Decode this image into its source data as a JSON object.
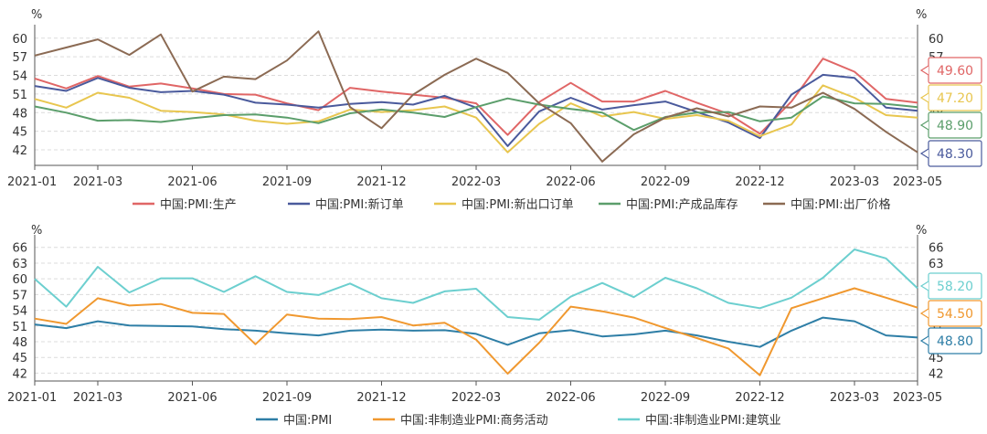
{
  "chart_data": [
    {
      "type": "line",
      "x": [
        "2021-01",
        "2021-02",
        "2021-03",
        "2021-04",
        "2021-05",
        "2021-06",
        "2021-07",
        "2021-08",
        "2021-09",
        "2021-10",
        "2021-11",
        "2021-12",
        "2022-01",
        "2022-02",
        "2022-03",
        "2022-04",
        "2022-05",
        "2022-06",
        "2022-07",
        "2022-08",
        "2022-09",
        "2022-10",
        "2022-11",
        "2022-12",
        "2023-01",
        "2023-02",
        "2023-03",
        "2023-04",
        "2023-05"
      ],
      "xticks": [
        "2021-01",
        "2021-03",
        "2021-06",
        "2021-09",
        "2021-12",
        "2022-03",
        "2022-06",
        "2022-09",
        "2022-12",
        "2023-03",
        "2023-05"
      ],
      "yticks": [
        "42",
        "45",
        "48",
        "51",
        "54",
        "57",
        "60"
      ],
      "ylim": [
        39.5,
        61
      ],
      "left_unit": "%",
      "right_unit": "%",
      "grid": true,
      "legend_position": "bottom",
      "series": [
        {
          "name": "中国:PMI:生产",
          "color": "#E06666",
          "values": [
            53.5,
            51.9,
            53.9,
            52.2,
            52.7,
            51.9,
            51.0,
            50.9,
            49.5,
            48.4,
            52.0,
            51.4,
            50.9,
            50.4,
            49.5,
            44.4,
            49.7,
            52.8,
            49.8,
            49.8,
            51.5,
            49.6,
            47.8,
            44.6,
            49.8,
            56.7,
            54.6,
            50.2,
            49.6
          ]
        },
        {
          "name": "中国:PMI:新订单",
          "color": "#4A5A9C",
          "values": [
            52.3,
            51.5,
            53.6,
            52.0,
            51.3,
            51.5,
            50.9,
            49.6,
            49.3,
            48.8,
            49.4,
            49.7,
            49.3,
            50.7,
            48.8,
            42.6,
            48.2,
            50.4,
            48.5,
            49.2,
            49.8,
            48.1,
            46.4,
            43.9,
            50.9,
            54.1,
            53.6,
            48.8,
            48.3
          ]
        },
        {
          "name": "中国:PMI:新出口订单",
          "color": "#E8C64F",
          "values": [
            50.2,
            48.8,
            51.2,
            50.4,
            48.3,
            48.1,
            47.7,
            46.7,
            46.2,
            46.6,
            48.5,
            48.1,
            48.4,
            49.0,
            47.2,
            41.6,
            46.2,
            49.5,
            47.4,
            48.1,
            47.0,
            47.6,
            46.7,
            44.2,
            46.1,
            52.4,
            50.4,
            47.6,
            47.2
          ]
        },
        {
          "name": "中国:PMI:产成品库存",
          "color": "#5B9E6B",
          "values": [
            49.0,
            48.0,
            46.7,
            46.8,
            46.5,
            47.1,
            47.6,
            47.7,
            47.2,
            46.3,
            47.9,
            48.5,
            48.0,
            47.3,
            48.9,
            50.3,
            49.3,
            48.6,
            48.0,
            45.2,
            47.3,
            48.0,
            48.1,
            46.6,
            47.2,
            50.6,
            49.5,
            49.4,
            48.9
          ]
        },
        {
          "name": "中国:PMI:出厂价格",
          "color": "#8B6A53",
          "values": [
            57.2,
            58.5,
            59.8,
            57.3,
            60.6,
            51.4,
            53.8,
            53.4,
            56.4,
            61.1,
            48.9,
            45.5,
            50.9,
            54.1,
            56.7,
            54.4,
            49.5,
            46.3,
            40.1,
            44.5,
            47.2,
            48.7,
            47.4,
            49.0,
            48.8,
            51.2,
            48.6,
            44.9,
            41.6
          ]
        }
      ],
      "end_labels": [
        {
          "text": "49.60",
          "color": "#E06666"
        },
        {
          "text": "47.20",
          "color": "#E8C64F"
        },
        {
          "text": "48.90",
          "color": "#5B9E6B"
        },
        {
          "text": "48.30",
          "color": "#4A5A9C"
        }
      ]
    },
    {
      "type": "line",
      "x": [
        "2021-01",
        "2021-02",
        "2021-03",
        "2021-04",
        "2021-05",
        "2021-06",
        "2021-07",
        "2021-08",
        "2021-09",
        "2021-10",
        "2021-11",
        "2021-12",
        "2022-01",
        "2022-02",
        "2022-03",
        "2022-04",
        "2022-05",
        "2022-06",
        "2022-07",
        "2022-08",
        "2022-09",
        "2022-10",
        "2022-11",
        "2022-12",
        "2023-01",
        "2023-02",
        "2023-03",
        "2023-04",
        "2023-05"
      ],
      "xticks": [
        "2021-01",
        "2021-03",
        "2021-06",
        "2021-09",
        "2021-12",
        "2022-03",
        "2022-06",
        "2022-09",
        "2022-12",
        "2023-03",
        "2023-05"
      ],
      "yticks": [
        "42",
        "45",
        "48",
        "51",
        "54",
        "57",
        "60",
        "63",
        "66"
      ],
      "ylim": [
        40.5,
        67
      ],
      "left_unit": "%",
      "right_unit": "%",
      "grid": true,
      "legend_position": "bottom",
      "series": [
        {
          "name": "中国:PMI",
          "color": "#2E7EA6",
          "values": [
            51.3,
            50.6,
            51.9,
            51.1,
            51.0,
            50.9,
            50.4,
            50.1,
            49.6,
            49.2,
            50.1,
            50.3,
            50.1,
            50.2,
            49.5,
            47.4,
            49.6,
            50.2,
            49.0,
            49.4,
            50.1,
            49.2,
            48.0,
            47.0,
            50.1,
            52.6,
            51.9,
            49.2,
            48.8
          ]
        },
        {
          "name": "中国:非制造业PMI:商务活动",
          "color": "#F0982F",
          "values": [
            52.4,
            51.4,
            56.3,
            54.9,
            55.2,
            53.5,
            53.3,
            47.5,
            53.2,
            52.4,
            52.3,
            52.7,
            51.1,
            51.6,
            48.4,
            41.9,
            47.8,
            54.7,
            53.8,
            52.6,
            50.6,
            48.7,
            46.7,
            41.6,
            54.4,
            56.3,
            58.2,
            56.4,
            54.5
          ]
        },
        {
          "name": "中国:非制造业PMI:建筑业",
          "color": "#6CCFCF",
          "values": [
            60.0,
            54.7,
            62.3,
            57.4,
            60.1,
            60.1,
            57.5,
            60.5,
            57.5,
            56.9,
            59.1,
            56.3,
            55.4,
            57.6,
            58.1,
            52.7,
            52.2,
            56.6,
            59.2,
            56.5,
            60.2,
            58.2,
            55.4,
            54.4,
            56.4,
            60.2,
            65.6,
            63.9,
            58.2
          ]
        }
      ],
      "end_labels": [
        {
          "text": "58.20",
          "color": "#6CCFCF"
        },
        {
          "text": "54.50",
          "color": "#F0982F"
        },
        {
          "text": "48.80",
          "color": "#2E7EA6"
        }
      ]
    }
  ]
}
